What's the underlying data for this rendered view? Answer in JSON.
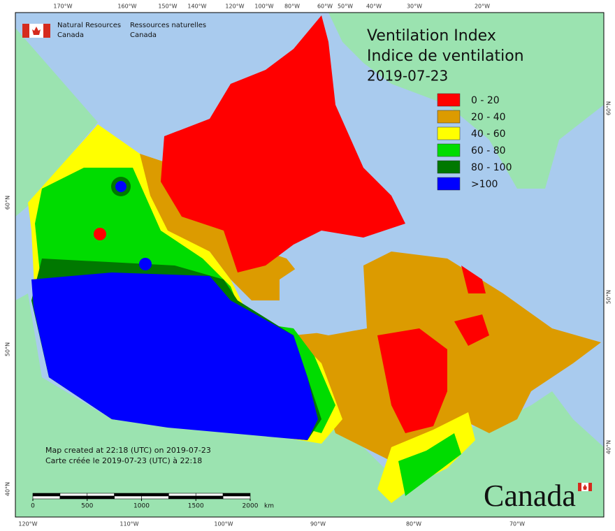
{
  "header": {
    "org_en": [
      "Natural Resources",
      "Canada"
    ],
    "org_fr": [
      "Ressources naturelles",
      "Canada"
    ]
  },
  "title": [
    "Ventilation Index",
    "Indice de ventilation",
    "2019-07-23"
  ],
  "legend": [
    {
      "label": "0 - 20",
      "color": "#ff0000"
    },
    {
      "label": "20 - 40",
      "color": "#dc9b00"
    },
    {
      "label": "40 - 60",
      "color": "#ffff00"
    },
    {
      "label": "60 - 80",
      "color": "#00dc00"
    },
    {
      "label": "80 - 100",
      "color": "#007800"
    },
    {
      "label": ">100",
      "color": "#0000ff"
    }
  ],
  "notes": [
    "Map created at 22:18 (UTC) on 2019-07-23",
    "Carte créée le 2019-07-23 (UTC) à 22:18"
  ],
  "scale": {
    "ticks": [
      0,
      500,
      1000,
      1500,
      2000
    ],
    "unit": "km"
  },
  "graticule": {
    "top": [
      "170°W",
      "160°W",
      "150°W",
      "140°W",
      "120°W",
      "100°W",
      "80°W",
      "60°W",
      "50°W",
      "40°W",
      "30°W",
      "20°W"
    ],
    "bottom": [
      "120°W",
      "110°W",
      "100°W",
      "90°W",
      "80°W",
      "70°W"
    ],
    "left": [
      "60°N",
      "50°N",
      "40°N"
    ],
    "right": [
      "60°N",
      "50°N",
      "40°N"
    ]
  },
  "wordmark": "Canada"
}
